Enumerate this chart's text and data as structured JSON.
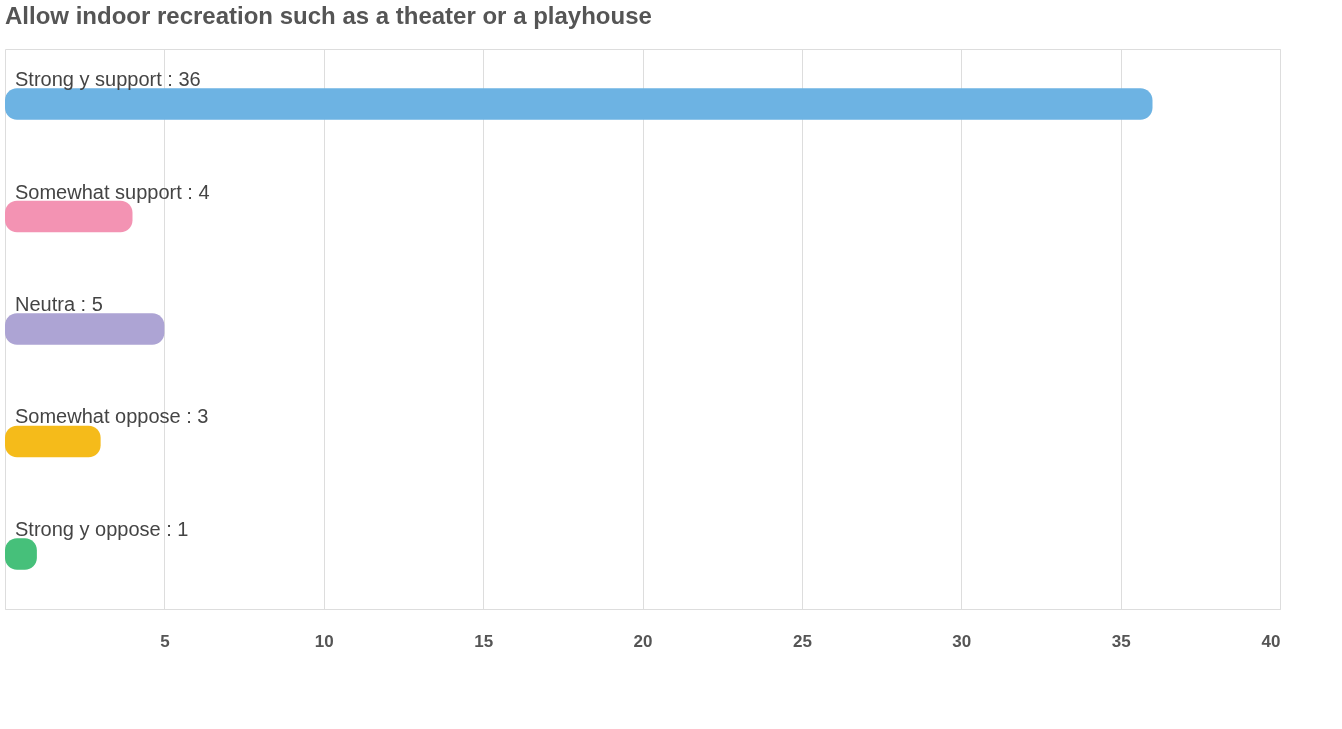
{
  "chart_data": {
    "type": "bar",
    "orientation": "horizontal",
    "title": "Allow indoor recreation such as a theater or a playhouse",
    "categories": [
      "Strong y support : 36",
      "Somewhat support : 4",
      "Neutra  : 5",
      "Somewhat oppose : 3",
      "Strong y oppose : 1"
    ],
    "series": [
      {
        "colors": [
          "#6db3e3",
          "#f393b3",
          "#ada4d4",
          "#f5bb1a",
          "#46c07a"
        ],
        "values": [
          36,
          4,
          5,
          3,
          1
        ]
      }
    ],
    "xlim": [
      0,
      40
    ],
    "xticks": [
      5,
      10,
      15,
      20,
      25,
      30,
      35,
      40
    ],
    "grid": "x"
  }
}
